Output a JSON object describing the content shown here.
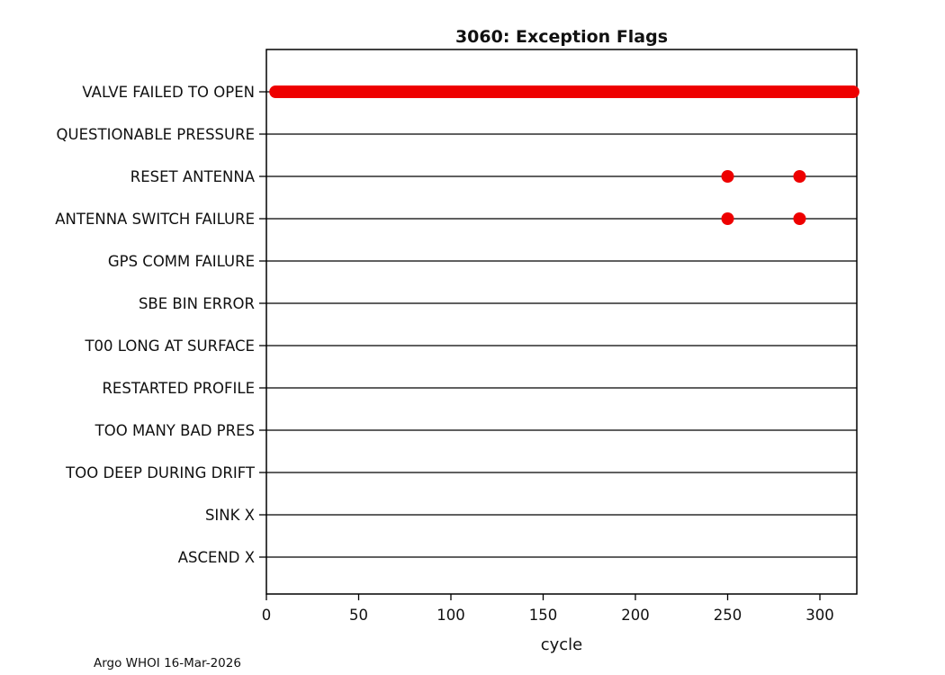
{
  "figure": {
    "title": "3060: Exception Flags",
    "xlabel": "cycle",
    "footer": "Argo WHOI 16-Mar-2026"
  },
  "chart_data": {
    "type": "scatter",
    "title": "3060: Exception Flags",
    "xlabel": "cycle",
    "ylabel": "",
    "xlim": [
      0,
      320
    ],
    "xticks": [
      0,
      50,
      100,
      150,
      200,
      250,
      300
    ],
    "grid": false,
    "legend": "none",
    "categories": [
      "VALVE FAILED TO OPEN",
      "QUESTIONABLE PRESSURE",
      "RESET ANTENNA",
      "ANTENNA SWITCH FAILURE",
      "GPS COMM FAILURE",
      "SBE BIN ERROR",
      "T00 LONG AT SURFACE",
      "RESTARTED PROFILE",
      "TOO MANY BAD PRES",
      "TOO DEEP DURING DRIFT",
      "SINK X",
      "ASCEND X"
    ],
    "marker": {
      "shape": "circle",
      "color": "#ee0000",
      "radius": 7
    },
    "row_line_color": "#000000",
    "series": [
      {
        "category": "VALVE FAILED TO OPEN",
        "cycle_range": [
          5,
          318
        ]
      },
      {
        "category": "RESET ANTENNA",
        "cycles": [
          250,
          289
        ]
      },
      {
        "category": "ANTENNA SWITCH FAILURE",
        "cycles": [
          250,
          289
        ]
      }
    ],
    "footer": "Argo WHOI 16-Mar-2026"
  }
}
